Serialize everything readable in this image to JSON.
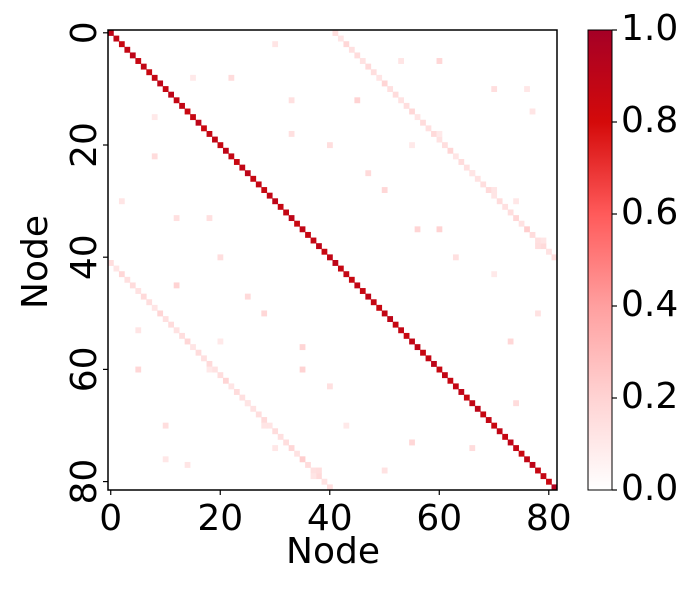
{
  "chart_data": {
    "type": "heatmap",
    "xlabel": "Node",
    "ylabel": "Node",
    "xlim": [
      -0.5,
      81.5
    ],
    "ylim": [
      -0.5,
      81.5
    ],
    "xticks": [
      0,
      20,
      40,
      60,
      80
    ],
    "yticks": [
      0,
      20,
      40,
      60,
      80
    ],
    "colorscale": [
      "#ffffff",
      "#ffd3d3",
      "#ff9f9f",
      "#ff5a5a",
      "#d40a0a",
      "#a50026"
    ],
    "clim": [
      0,
      1
    ],
    "cticks": [
      {
        "value": 0,
        "label": "0.0"
      },
      0.2,
      0.4,
      0.6,
      0.8,
      {
        "value": 1,
        "label": "1.0"
      }
    ],
    "x": [
      0,
      1,
      2,
      3,
      4,
      5,
      6,
      7,
      8,
      9,
      10,
      11,
      12,
      13,
      14,
      15,
      16,
      17,
      18,
      19,
      20,
      21,
      22,
      23,
      24,
      25,
      26,
      27,
      28,
      29,
      30,
      31,
      32,
      33,
      34,
      35,
      36,
      37,
      38,
      39,
      40,
      41,
      42,
      43,
      44,
      45,
      46,
      47,
      48,
      49,
      50,
      51,
      52,
      53,
      54,
      55,
      56,
      57,
      58,
      59,
      60,
      61,
      62,
      63,
      64,
      65,
      66,
      67,
      68,
      69,
      70,
      71,
      72,
      73,
      74,
      75,
      76,
      77,
      78,
      79,
      80,
      81,
      0,
      1,
      2,
      3,
      4,
      5,
      6,
      7,
      8,
      9,
      10,
      11,
      12,
      13,
      14,
      15,
      16,
      17,
      18,
      19,
      20,
      21,
      22,
      23,
      24,
      25,
      26,
      27,
      28,
      29,
      30,
      31,
      32,
      33,
      34,
      35,
      36,
      37,
      38,
      39,
      40,
      41,
      42,
      43,
      44,
      45,
      46,
      47,
      48,
      49,
      50,
      51,
      52,
      53,
      54,
      55,
      56,
      57,
      58,
      59,
      60,
      61,
      62,
      63,
      64,
      65,
      66,
      67,
      68,
      69,
      70,
      71,
      72,
      73,
      74,
      75,
      76,
      77,
      78,
      79,
      80,
      81,
      2,
      5,
      8,
      10,
      12,
      14,
      18,
      20,
      22,
      25,
      28,
      30,
      33,
      35,
      37,
      40,
      43,
      47,
      50,
      53,
      56,
      60,
      63,
      66,
      70,
      73,
      76,
      78,
      30,
      60,
      15,
      70,
      45,
      77,
      33,
      55,
      8,
      66,
      50,
      74,
      12,
      60,
      79,
      20,
      70,
      25,
      78,
      5,
      35,
      18,
      40,
      74,
      28,
      55,
      10,
      38
    ],
    "y": [
      0,
      1,
      2,
      3,
      4,
      5,
      6,
      7,
      8,
      9,
      10,
      11,
      12,
      13,
      14,
      15,
      16,
      17,
      18,
      19,
      20,
      21,
      22,
      23,
      24,
      25,
      26,
      27,
      28,
      29,
      30,
      31,
      32,
      33,
      34,
      35,
      36,
      37,
      38,
      39,
      40,
      41,
      42,
      43,
      44,
      45,
      46,
      47,
      48,
      49,
      50,
      51,
      52,
      53,
      54,
      55,
      56,
      57,
      58,
      59,
      60,
      61,
      62,
      63,
      64,
      65,
      66,
      67,
      68,
      69,
      70,
      71,
      72,
      73,
      74,
      75,
      76,
      77,
      78,
      79,
      80,
      81,
      41,
      42,
      43,
      44,
      45,
      46,
      47,
      48,
      49,
      50,
      51,
      52,
      53,
      54,
      55,
      56,
      57,
      58,
      59,
      60,
      61,
      62,
      63,
      64,
      65,
      66,
      67,
      68,
      69,
      70,
      71,
      72,
      73,
      74,
      75,
      76,
      77,
      78,
      79,
      80,
      81,
      0,
      1,
      2,
      3,
      4,
      5,
      6,
      7,
      8,
      9,
      10,
      11,
      12,
      13,
      14,
      15,
      16,
      17,
      18,
      19,
      20,
      21,
      22,
      23,
      24,
      25,
      26,
      27,
      28,
      29,
      30,
      31,
      32,
      33,
      34,
      35,
      36,
      37,
      38,
      39,
      40,
      30,
      60,
      15,
      70,
      45,
      77,
      33,
      55,
      8,
      66,
      50,
      74,
      12,
      60,
      79,
      20,
      70,
      25,
      78,
      5,
      35,
      18,
      40,
      74,
      28,
      55,
      10,
      38,
      2,
      5,
      8,
      10,
      12,
      14,
      18,
      20,
      22,
      25,
      28,
      30,
      33,
      35,
      37,
      40,
      43,
      47,
      50,
      53,
      56,
      60,
      63,
      66,
      70,
      73,
      76,
      78
    ],
    "values": [
      0.9,
      0.88,
      0.85,
      0.87,
      0.9,
      0.86,
      0.88,
      0.85,
      0.87,
      0.89,
      0.86,
      0.9,
      0.87,
      0.88,
      0.85,
      0.86,
      0.9,
      0.84,
      0.87,
      0.88,
      0.86,
      0.89,
      0.87,
      0.85,
      0.88,
      0.9,
      0.86,
      0.87,
      0.85,
      0.88,
      0.89,
      0.86,
      0.87,
      0.9,
      0.85,
      0.88,
      0.86,
      0.87,
      0.89,
      0.85,
      0.88,
      0.9,
      0.86,
      0.87,
      0.85,
      0.88,
      0.86,
      0.89,
      0.87,
      0.85,
      0.88,
      0.9,
      0.86,
      0.87,
      0.85,
      0.88,
      0.89,
      0.86,
      0.87,
      0.9,
      0.85,
      0.88,
      0.86,
      0.87,
      0.89,
      0.85,
      0.88,
      0.9,
      0.86,
      0.87,
      0.85,
      0.88,
      0.86,
      0.89,
      0.87,
      0.85,
      0.88,
      0.9,
      0.86,
      0.87,
      0.85,
      0.95,
      0.15,
      0.12,
      0.18,
      0.14,
      0.16,
      0.13,
      0.17,
      0.15,
      0.12,
      0.19,
      0.14,
      0.16,
      0.13,
      0.15,
      0.18,
      0.12,
      0.16,
      0.14,
      0.17,
      0.13,
      0.15,
      0.19,
      0.12,
      0.16,
      0.14,
      0.18,
      0.13,
      0.15,
      0.17,
      0.12,
      0.16,
      0.14,
      0.15,
      0.18,
      0.13,
      0.22,
      0.16,
      0.14,
      0.17,
      0.13,
      0.15,
      0.15,
      0.12,
      0.18,
      0.14,
      0.16,
      0.13,
      0.17,
      0.15,
      0.12,
      0.19,
      0.14,
      0.16,
      0.13,
      0.15,
      0.18,
      0.12,
      0.16,
      0.14,
      0.17,
      0.13,
      0.15,
      0.19,
      0.12,
      0.16,
      0.14,
      0.18,
      0.13,
      0.15,
      0.17,
      0.12,
      0.16,
      0.14,
      0.15,
      0.18,
      0.13,
      0.22,
      0.16,
      0.14,
      0.17,
      0.13,
      0.15,
      0.12,
      0.18,
      0.1,
      0.15,
      0.2,
      0.12,
      0.14,
      0.1,
      0.16,
      0.12,
      0.18,
      0.11,
      0.14,
      0.2,
      0.12,
      0.15,
      0.1,
      0.17,
      0.13,
      0.12,
      0.19,
      0.1,
      0.14,
      0.16,
      0.12,
      0.18,
      0.11,
      0.15,
      0.12,
      0.18,
      0.1,
      0.15,
      0.2,
      0.12,
      0.14,
      0.1,
      0.16,
      0.12,
      0.18,
      0.11,
      0.14,
      0.2,
      0.12,
      0.15,
      0.1,
      0.17,
      0.13,
      0.12,
      0.19,
      0.1,
      0.14,
      0.16,
      0.12,
      0.18,
      0.11,
      0.15
    ]
  }
}
